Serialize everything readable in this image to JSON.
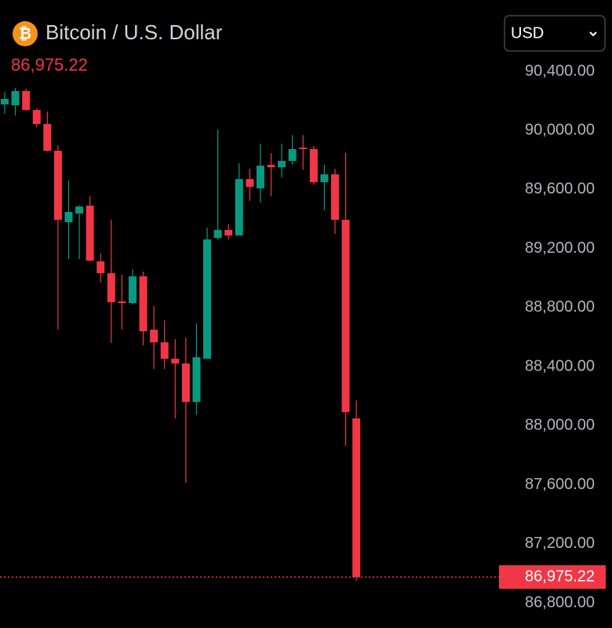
{
  "chart_data": {
    "type": "candlestick",
    "title": "Bitcoin / U.S. Dollar",
    "icon_symbol": "₿",
    "currency": "USD",
    "last_price": {
      "value": 86975.22,
      "label": "86,975.22"
    },
    "open": [
      90177,
      90171,
      90267,
      90139,
      90044,
      89863,
      89379,
      89438,
      89491,
      89113,
      89033,
      88842,
      88831,
      89012,
      88651,
      88565,
      88454,
      88422,
      88161,
      88454,
      89273,
      89326,
      89289,
      89671,
      89608,
      89767,
      89751,
      89794,
      89884,
      89874,
      89650,
      89703,
      89395,
      88050
    ],
    "high": [
      90262,
      90288,
      90283,
      90150,
      90129,
      89900,
      89661,
      89491,
      89555,
      89166,
      89395,
      89023,
      89060,
      89044,
      88810,
      88714,
      88587,
      88597,
      88693,
      89342,
      90007,
      89368,
      89778,
      89741,
      89911,
      89847,
      89911,
      89969,
      89969,
      89895,
      89767,
      89741,
      89847,
      88172
    ],
    "low": [
      90113,
      90102,
      90134,
      90022,
      89858,
      88651,
      89129,
      89129,
      89118,
      88970,
      88560,
      88651,
      88821,
      88544,
      88385,
      88385,
      88050,
      87614,
      88076,
      88454,
      89262,
      89262,
      89289,
      89523,
      89512,
      89555,
      89682,
      89767,
      89735,
      89634,
      89459,
      89299,
      87864,
      86950
    ],
    "close": [
      90214,
      90267,
      90139,
      90044,
      89863,
      89395,
      89448,
      89485,
      89118,
      89033,
      88837,
      88831,
      89012,
      88640,
      88565,
      88454,
      88422,
      88161,
      88464,
      89262,
      89326,
      89289,
      89671,
      89618,
      89762,
      89751,
      89794,
      89874,
      89874,
      89650,
      89703,
      89395,
      88092,
      86975.22
    ],
    "up_color": "#089981",
    "down_color": "#f23645",
    "ylim": [
      86630,
      90884
    ],
    "yticks": [
      {
        "value": 90400,
        "label": "90,400.00"
      },
      {
        "value": 90000,
        "label": "90,000.00"
      },
      {
        "value": 89600,
        "label": "89,600.00"
      },
      {
        "value": 89200,
        "label": "89,200.00"
      },
      {
        "value": 88800,
        "label": "88,800.00"
      },
      {
        "value": 88400,
        "label": "88,400.00"
      },
      {
        "value": 88000,
        "label": "88,000.00"
      },
      {
        "value": 87600,
        "label": "87,600.00"
      },
      {
        "value": 87200,
        "label": "87,200.00"
      },
      {
        "value": 86800,
        "label": "86,800.00"
      }
    ],
    "grid": false
  }
}
